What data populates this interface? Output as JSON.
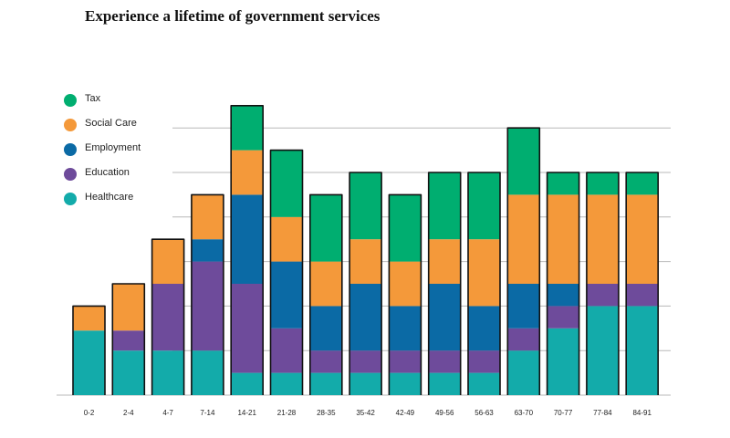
{
  "chart_data": {
    "type": "bar",
    "stacked": true,
    "title": "Experience a lifetime of government services",
    "xlabel": "",
    "ylabel": "",
    "ylim": [
      0,
      7
    ],
    "grid": true,
    "legend_position": "left",
    "categories": [
      "0-2",
      "2-4",
      "4-7",
      "7-14",
      "14-21",
      "21-28",
      "28-35",
      "35-42",
      "42-49",
      "49-56",
      "56-63",
      "63-70",
      "70-77",
      "77-84",
      "84-91"
    ],
    "series": [
      {
        "name": "Healthcare",
        "color": "#13abaa",
        "values": [
          1.45,
          1.0,
          1.0,
          1.0,
          0.5,
          0.5,
          0.5,
          0.5,
          0.5,
          0.5,
          0.5,
          1.0,
          1.5,
          2.0,
          2.0
        ]
      },
      {
        "name": "Education",
        "color": "#6e4b9b",
        "values": [
          0,
          0.45,
          1.5,
          2.0,
          2.0,
          1.0,
          0.5,
          0.5,
          0.5,
          0.5,
          0.5,
          0.5,
          0.5,
          0.5,
          0.5
        ]
      },
      {
        "name": "Employment",
        "color": "#0b6aa5",
        "values": [
          0,
          0,
          0,
          0.5,
          2.0,
          1.5,
          1.0,
          1.5,
          1.0,
          1.5,
          1.0,
          1.0,
          0.5,
          0,
          0
        ]
      },
      {
        "name": "Social Care",
        "color": "#f4993a",
        "values": [
          0.55,
          1.05,
          1.0,
          1.0,
          1.0,
          1.0,
          1.0,
          1.0,
          1.0,
          1.0,
          1.5,
          2.0,
          2.0,
          2.0,
          2.0
        ]
      },
      {
        "name": "Tax",
        "color": "#00ae70",
        "values": [
          0,
          0,
          0,
          0,
          1.0,
          1.5,
          1.5,
          1.5,
          1.5,
          1.5,
          1.5,
          1.5,
          0.5,
          0.5,
          0.5
        ]
      }
    ]
  },
  "legend": [
    {
      "label": "Tax",
      "color": "#00ae70"
    },
    {
      "label": "Social Care",
      "color": "#f4993a"
    },
    {
      "label": "Employment",
      "color": "#0b6aa5"
    },
    {
      "label": "Education",
      "color": "#6e4b9b"
    },
    {
      "label": "Healthcare",
      "color": "#13abaa"
    }
  ]
}
